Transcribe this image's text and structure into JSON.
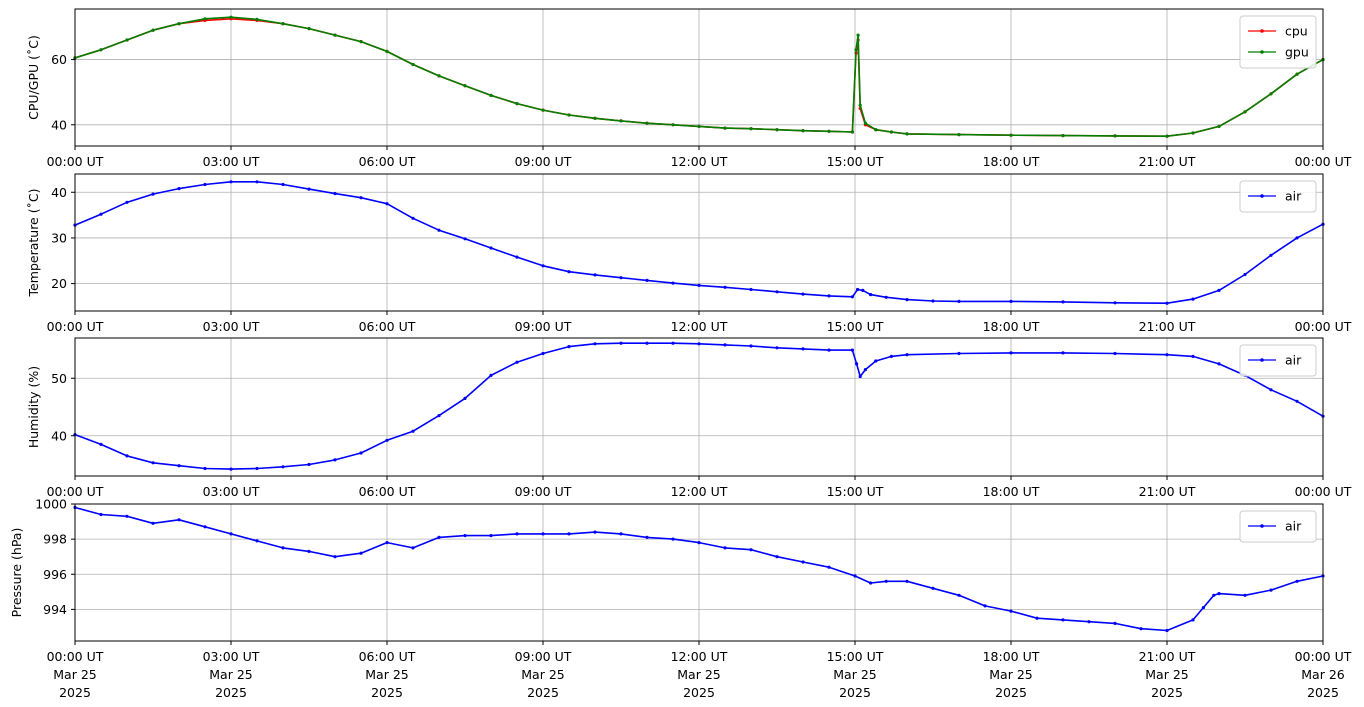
{
  "x_tick_labels": [
    "00:00 UT",
    "03:00 UT",
    "06:00 UT",
    "09:00 UT",
    "12:00 UT",
    "15:00 UT",
    "18:00 UT",
    "21:00 UT",
    "00:00 UT"
  ],
  "x_date_labels": [
    "Mar 25",
    "Mar 25",
    "Mar 25",
    "Mar 25",
    "Mar 25",
    "Mar 25",
    "Mar 25",
    "Mar 25",
    "Mar 26"
  ],
  "x_year_labels": [
    "2025",
    "2025",
    "2025",
    "2025",
    "2025",
    "2025",
    "2025",
    "2025",
    "2025"
  ],
  "chart_data": [
    {
      "type": "line",
      "ylabel": "CPU/GPU (˚C)",
      "xlabel": "",
      "x_unit": "hours UT, 2025-03-25",
      "xlim": [
        0,
        24
      ],
      "ylim": [
        33.5,
        75.5
      ],
      "yticks": [
        40,
        60
      ],
      "ytick_labels": [
        "40",
        "60"
      ],
      "grid": true,
      "legend_position": "top-right",
      "series": [
        {
          "name": "cpu",
          "color": "#ff0000",
          "x": [
            0,
            0.5,
            1,
            1.5,
            2,
            2.5,
            3,
            3.5,
            4,
            4.5,
            5,
            5.5,
            6,
            6.5,
            7,
            7.5,
            8,
            8.5,
            9,
            9.5,
            10,
            10.5,
            11,
            11.5,
            12,
            12.5,
            13,
            13.5,
            14,
            14.5,
            14.95,
            15.02,
            15.06,
            15.1,
            15.2,
            15.4,
            15.7,
            16,
            17,
            18,
            19,
            20,
            21,
            21.5,
            22,
            22.5,
            23,
            23.5,
            24
          ],
          "y": [
            60.5,
            63,
            66,
            69,
            71,
            72,
            72.5,
            72,
            71,
            69.5,
            67.5,
            65.5,
            62.5,
            58.5,
            55,
            52,
            49,
            46.5,
            44.5,
            43,
            42,
            41.2,
            40.5,
            40,
            39.5,
            39,
            38.8,
            38.5,
            38.2,
            38,
            37.8,
            62,
            66,
            45,
            40,
            38.5,
            37.8,
            37.2,
            37,
            36.8,
            36.7,
            36.6,
            36.5,
            37.5,
            39.5,
            44,
            49.5,
            55.5,
            60
          ]
        },
        {
          "name": "gpu",
          "color": "#008000",
          "x": [
            0,
            0.5,
            1,
            1.5,
            2,
            2.5,
            3,
            3.5,
            4,
            4.5,
            5,
            5.5,
            6,
            6.5,
            7,
            7.5,
            8,
            8.5,
            9,
            9.5,
            10,
            10.5,
            11,
            11.5,
            12,
            12.5,
            13,
            13.5,
            14,
            14.5,
            14.95,
            15.02,
            15.06,
            15.1,
            15.2,
            15.4,
            15.7,
            16,
            17,
            18,
            19,
            20,
            21,
            21.5,
            22,
            22.5,
            23,
            23.5,
            24
          ],
          "y": [
            60.5,
            63,
            66,
            69,
            71,
            72.5,
            73,
            72.3,
            71,
            69.5,
            67.5,
            65.5,
            62.5,
            58.5,
            55,
            52,
            49,
            46.5,
            44.5,
            43,
            42,
            41.2,
            40.5,
            40,
            39.5,
            39,
            38.8,
            38.5,
            38.2,
            38,
            37.8,
            63,
            67.5,
            46,
            40.5,
            38.5,
            37.8,
            37.2,
            37,
            36.8,
            36.7,
            36.6,
            36.5,
            37.5,
            39.5,
            44,
            49.5,
            55.5,
            60
          ]
        }
      ]
    },
    {
      "type": "line",
      "ylabel": "Temperature (˚C)",
      "xlabel": "",
      "x_unit": "hours UT, 2025-03-25",
      "xlim": [
        0,
        24
      ],
      "ylim": [
        14,
        44
      ],
      "yticks": [
        20,
        30,
        40
      ],
      "ytick_labels": [
        "20",
        "30",
        "40"
      ],
      "grid": true,
      "legend_position": "top-right",
      "series": [
        {
          "name": "air",
          "color": "#0000ff",
          "x": [
            0,
            0.5,
            1,
            1.5,
            2,
            2.5,
            3,
            3.5,
            4,
            4.5,
            5,
            5.5,
            6,
            6.5,
            7,
            7.5,
            8,
            8.5,
            9,
            9.5,
            10,
            10.5,
            11,
            11.5,
            12,
            12.5,
            13,
            13.5,
            14,
            14.5,
            14.95,
            15.05,
            15.15,
            15.3,
            15.6,
            16,
            16.5,
            17,
            18,
            19,
            20,
            21,
            21.5,
            22,
            22.5,
            23,
            23.5,
            24
          ],
          "y": [
            32.8,
            35.2,
            37.8,
            39.6,
            40.8,
            41.7,
            42.3,
            42.3,
            41.7,
            40.7,
            39.7,
            38.8,
            37.5,
            34.3,
            31.7,
            29.8,
            27.8,
            25.8,
            23.9,
            22.6,
            21.9,
            21.3,
            20.7,
            20.1,
            19.6,
            19.2,
            18.7,
            18.2,
            17.7,
            17.3,
            17.1,
            18.7,
            18.5,
            17.6,
            17.0,
            16.5,
            16.2,
            16.1,
            16.1,
            16.0,
            15.8,
            15.7,
            16.6,
            18.5,
            22.0,
            26.2,
            30.0,
            33.0
          ]
        }
      ]
    },
    {
      "type": "line",
      "ylabel": "Humidity (%)",
      "xlabel": "",
      "x_unit": "hours UT, 2025-03-25",
      "xlim": [
        0,
        24
      ],
      "ylim": [
        33,
        57
      ],
      "yticks": [
        40,
        50
      ],
      "ytick_labels": [
        "40",
        "50"
      ],
      "grid": true,
      "legend_position": "top-right",
      "series": [
        {
          "name": "air",
          "color": "#0000ff",
          "x": [
            0,
            0.5,
            1,
            1.5,
            2,
            2.5,
            3,
            3.5,
            4,
            4.5,
            5,
            5.5,
            6,
            6.5,
            7,
            7.5,
            8,
            8.5,
            9,
            9.5,
            10,
            10.5,
            11,
            11.5,
            12,
            12.5,
            13,
            13.5,
            14,
            14.5,
            14.95,
            15.03,
            15.1,
            15.2,
            15.4,
            15.7,
            16,
            17,
            18,
            19,
            20,
            21,
            21.5,
            22,
            22.5,
            23,
            23.5,
            24
          ],
          "y": [
            40.2,
            38.5,
            36.5,
            35.3,
            34.8,
            34.3,
            34.2,
            34.3,
            34.6,
            35.0,
            35.8,
            37.0,
            39.2,
            40.8,
            43.5,
            46.5,
            50.5,
            52.8,
            54.3,
            55.5,
            56.0,
            56.1,
            56.1,
            56.1,
            56.0,
            55.8,
            55.6,
            55.3,
            55.1,
            54.9,
            54.9,
            52.5,
            50.3,
            51.5,
            53.0,
            53.8,
            54.1,
            54.3,
            54.4,
            54.4,
            54.3,
            54.1,
            53.8,
            52.5,
            50.5,
            48.0,
            46.0,
            43.4
          ]
        }
      ]
    },
    {
      "type": "line",
      "ylabel": "Pressure (hPa)",
      "xlabel": "",
      "x_unit": "hours UT, 2025-03-25",
      "xlim": [
        0,
        24
      ],
      "ylim": [
        992.2,
        1000
      ],
      "yticks": [
        994,
        996,
        998,
        1000
      ],
      "ytick_labels": [
        "994",
        "996",
        "998",
        "1000"
      ],
      "grid": true,
      "legend_position": "top-right",
      "series": [
        {
          "name": "air",
          "color": "#0000ff",
          "x": [
            0,
            0.5,
            1,
            1.5,
            2,
            2.5,
            3,
            3.5,
            4,
            4.5,
            5,
            5.5,
            6,
            6.5,
            7,
            7.5,
            8,
            8.5,
            9,
            9.5,
            10,
            10.5,
            11,
            11.5,
            12,
            12.5,
            13,
            13.5,
            14,
            14.5,
            15,
            15.3,
            15.6,
            16,
            16.5,
            17,
            17.5,
            18,
            18.5,
            19,
            19.5,
            20,
            20.5,
            21,
            21.5,
            21.7,
            21.9,
            22,
            22.5,
            23,
            23.5,
            24
          ],
          "y": [
            999.8,
            999.4,
            999.3,
            998.9,
            999.1,
            998.7,
            998.3,
            997.9,
            997.5,
            997.3,
            997.0,
            997.2,
            997.8,
            997.5,
            998.1,
            998.2,
            998.2,
            998.3,
            998.3,
            998.3,
            998.4,
            998.3,
            998.1,
            998.0,
            997.8,
            997.5,
            997.4,
            997.0,
            996.7,
            996.4,
            995.9,
            995.5,
            995.6,
            995.6,
            995.2,
            994.8,
            994.2,
            993.9,
            993.5,
            993.4,
            993.3,
            993.2,
            992.9,
            992.8,
            993.4,
            994.1,
            994.8,
            994.9,
            994.8,
            995.1,
            995.6,
            995.9
          ]
        }
      ]
    }
  ]
}
